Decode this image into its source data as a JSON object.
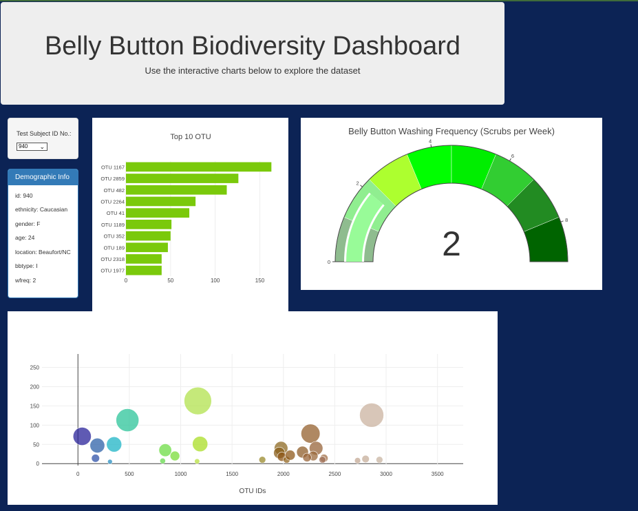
{
  "header": {
    "title": "Belly Button Biodiversity Dashboard",
    "subtitle": "Use the interactive charts below to explore the dataset"
  },
  "selector": {
    "label": "Test Subject ID No.:",
    "value": "940"
  },
  "demographics": {
    "title": "Demographic Info",
    "lines": [
      "id: 940",
      "ethnicity: Caucasian",
      "gender: F",
      "age: 24",
      "location: Beaufort/NC",
      "bbtype: I",
      "wfreq: 2"
    ]
  },
  "colors": {
    "bar": "#7ac90b",
    "background": "#0c2355",
    "panel_header": "#337ab7"
  },
  "chart_data": [
    {
      "type": "bar",
      "orientation": "horizontal",
      "title": "Top 10 OTU",
      "categories": [
        "OTU 1167",
        "OTU 2859",
        "OTU 482",
        "OTU 2264",
        "OTU 41",
        "OTU 1189",
        "OTU 352",
        "OTU 189",
        "OTU 2318",
        "OTU 1977"
      ],
      "values": [
        163,
        126,
        113,
        78,
        71,
        51,
        50,
        47,
        40,
        40
      ],
      "xticks": [
        0,
        50,
        100,
        150
      ],
      "xlim": [
        0,
        172
      ]
    },
    {
      "type": "gauge",
      "title": "Belly Button Washing Frequency (Scrubs per Week)",
      "value": 2,
      "range": [
        0,
        9
      ],
      "ticks": [
        0,
        2,
        4,
        6,
        8
      ],
      "band_colors": [
        "#8fbc8f",
        "#90ee90",
        "#adff2f",
        "#00ff00",
        "#00ee00",
        "#32cd32",
        "#228b22",
        "#006400"
      ]
    },
    {
      "type": "scatter",
      "xlabel": "OTU IDs",
      "xticks": [
        0,
        500,
        1000,
        1500,
        2000,
        2500,
        3000,
        3500
      ],
      "yticks": [
        0,
        50,
        100,
        150,
        200,
        250
      ],
      "xlim": [
        -350,
        3750
      ],
      "ylim": [
        -5,
        285
      ],
      "points": [
        {
          "x": 41,
          "y": 71,
          "color": "#2a2399"
        },
        {
          "x": 189,
          "y": 47,
          "color": "#2d62a8"
        },
        {
          "x": 352,
          "y": 50,
          "color": "#1eb4c6"
        },
        {
          "x": 482,
          "y": 113,
          "color": "#2cc49a"
        },
        {
          "x": 171,
          "y": 14,
          "color": "#2d52a8"
        },
        {
          "x": 312,
          "y": 5,
          "color": "#2a8fc0"
        },
        {
          "x": 850,
          "y": 35,
          "color": "#6ddc45"
        },
        {
          "x": 944,
          "y": 20,
          "color": "#7adc38"
        },
        {
          "x": 825,
          "y": 7,
          "color": "#66d84c"
        },
        {
          "x": 1167,
          "y": 163,
          "color": "#b2e24e"
        },
        {
          "x": 1189,
          "y": 51,
          "color": "#a9dd26"
        },
        {
          "x": 1160,
          "y": 6,
          "color": "#b8e040"
        },
        {
          "x": 1795,
          "y": 10,
          "color": "#9a8a2c"
        },
        {
          "x": 1977,
          "y": 40,
          "color": "#8d6a23"
        },
        {
          "x": 1960,
          "y": 28,
          "color": "#8a5f1c"
        },
        {
          "x": 1985,
          "y": 18,
          "color": "#8d5718"
        },
        {
          "x": 2032,
          "y": 10,
          "color": "#916520"
        },
        {
          "x": 2066,
          "y": 22,
          "color": "#8f5a1b"
        },
        {
          "x": 2186,
          "y": 30,
          "color": "#8f5e2a"
        },
        {
          "x": 2264,
          "y": 78,
          "color": "#94602e"
        },
        {
          "x": 2318,
          "y": 40,
          "color": "#97643a"
        },
        {
          "x": 2290,
          "y": 20,
          "color": "#9b6a3c"
        },
        {
          "x": 2230,
          "y": 16,
          "color": "#9a653a"
        },
        {
          "x": 2395,
          "y": 14,
          "color": "#a27049"
        },
        {
          "x": 2380,
          "y": 10,
          "color": "#a0715a"
        },
        {
          "x": 2722,
          "y": 8,
          "color": "#c3a894"
        },
        {
          "x": 2800,
          "y": 12,
          "color": "#c6ad9a"
        },
        {
          "x": 2859,
          "y": 126,
          "color": "#cbb3a0"
        },
        {
          "x": 2935,
          "y": 10,
          "color": "#c8b4a2"
        }
      ]
    }
  ]
}
